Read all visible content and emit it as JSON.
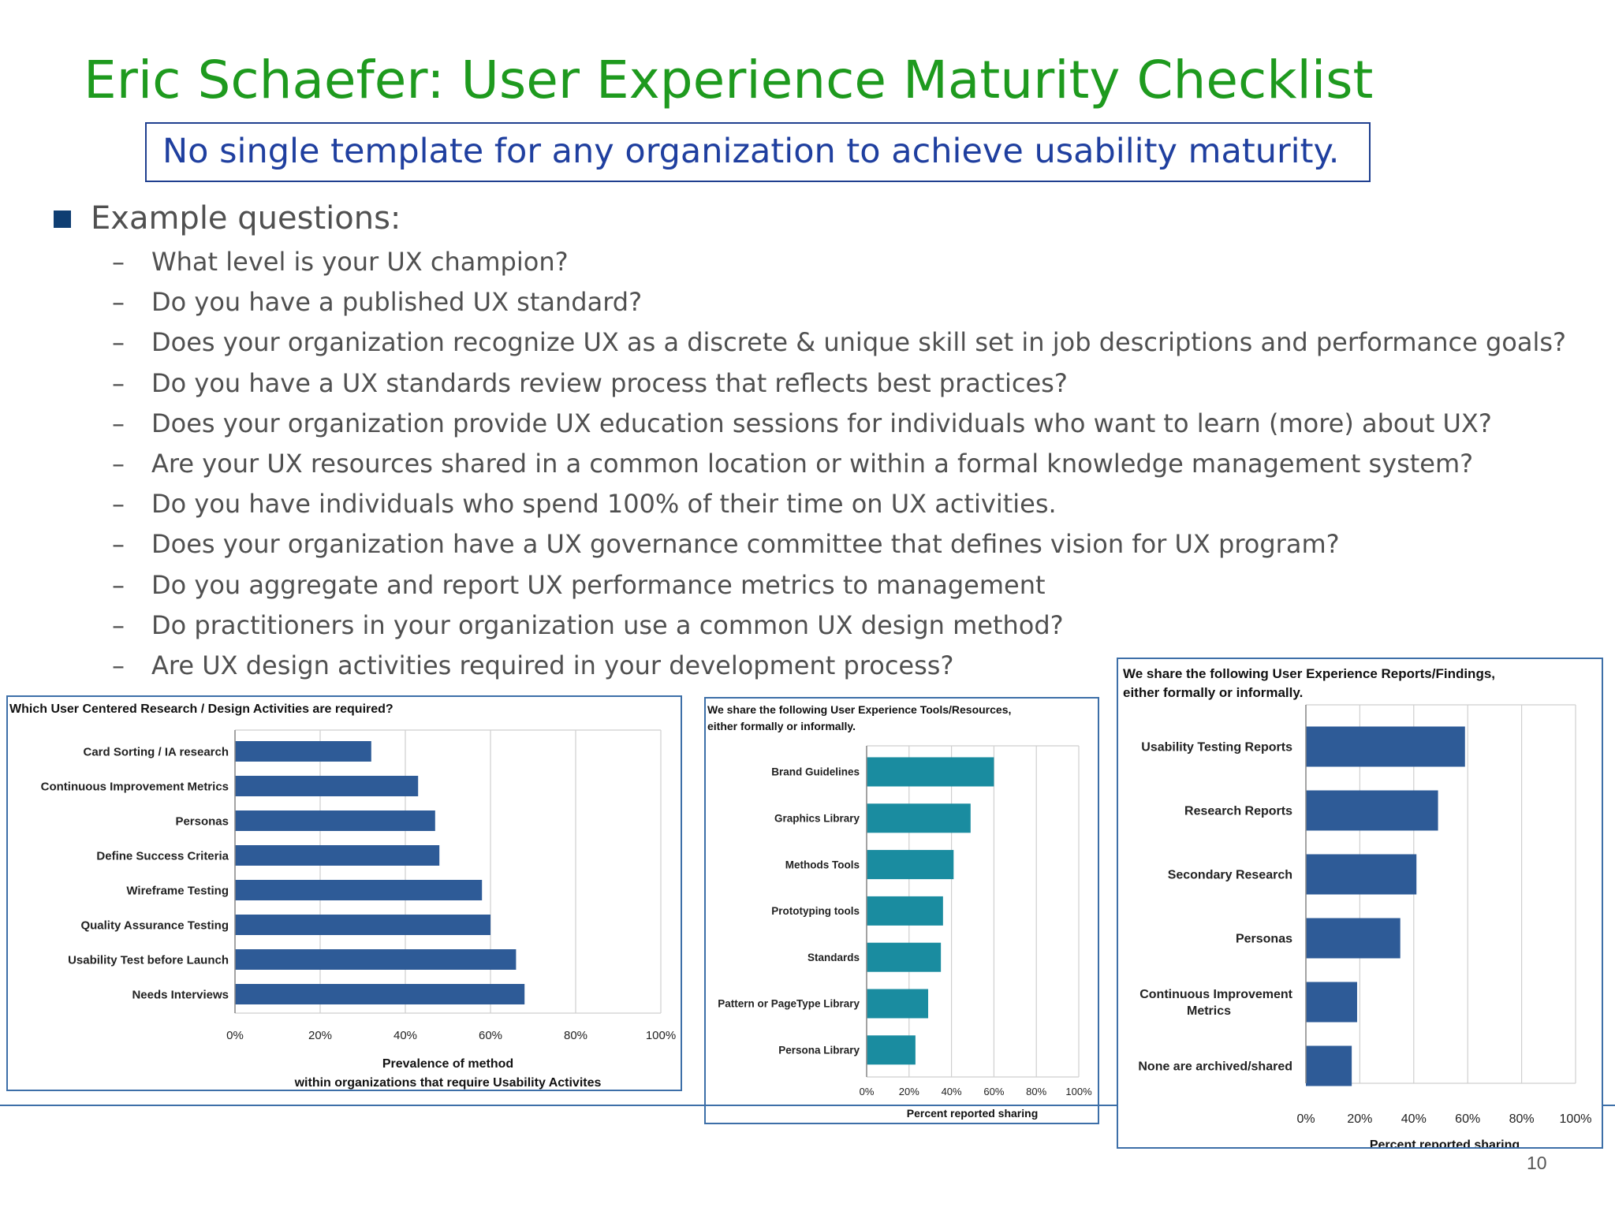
{
  "slide": {
    "title": "Eric Schaefer: User Experience Maturity Checklist",
    "callout": "No single template for any organization to achieve usability maturity.",
    "bullet": "Example questions:",
    "dash": "–",
    "questions": [
      "What level is your UX champion?",
      "Do you have a published UX standard?",
      "Does your organization recognize UX as a discrete & unique skill set in job descriptions and performance goals?",
      "Do you have a UX standards review process that reflects best practices?",
      "Does your organization provide UX education sessions for individuals who want to learn (more) about UX?",
      "Are your UX resources shared in a common location or within a formal knowledge management system?",
      "Do you have individuals who spend 100% of their time on UX activities.",
      "Does your organization have a UX governance committee that defines vision for UX program?",
      "Do you aggregate and report UX performance metrics to management",
      "Do practitioners in your organization use a common UX design method?",
      "Are UX design activities required in your development process?"
    ],
    "page_number": "10",
    "colors": {
      "title": "#1e9a1e",
      "callout_text": "#1f3f9f",
      "bar_blue": "#2e5b97",
      "bar_teal": "#1a8ca0"
    }
  },
  "chart_data": [
    {
      "type": "bar",
      "orientation": "horizontal",
      "title_lines": [
        "Which User Centered Research / Design Activities are required?"
      ],
      "categories": [
        "Card Sorting / IA research",
        "Continuous Improvement Metrics",
        "Personas",
        "Define Success Criteria",
        "Wireframe Testing",
        "Quality Assurance Testing",
        "Usability Test before Launch",
        "Needs Interviews"
      ],
      "values": [
        32,
        43,
        47,
        48,
        58,
        60,
        66,
        68
      ],
      "xlim": [
        0,
        100
      ],
      "xticks": [
        "0%",
        "20%",
        "40%",
        "60%",
        "80%",
        "100%"
      ],
      "xlabel_lines": [
        "Prevalence of method",
        "within organizations that require Usability Activites"
      ],
      "color": "#2e5b97",
      "grid": true
    },
    {
      "type": "bar",
      "orientation": "horizontal",
      "title_lines": [
        "We share the following User Experience Tools/Resources,",
        "either formally or informally."
      ],
      "categories": [
        "Brand Guidelines",
        "Graphics Library",
        "Methods Tools",
        "Prototyping tools",
        "Standards",
        "Pattern or PageType Library",
        "Persona Library"
      ],
      "values": [
        60,
        49,
        41,
        36,
        35,
        29,
        23
      ],
      "xlim": [
        0,
        100
      ],
      "xticks": [
        "0%",
        "20%",
        "40%",
        "60%",
        "80%",
        "100%"
      ],
      "xlabel_lines": [
        "Percent reported sharing"
      ],
      "color": "#1a8ca0",
      "grid": true
    },
    {
      "type": "bar",
      "orientation": "horizontal",
      "title_lines": [
        "We share the following User Experience Reports/Findings,",
        "either formally or informally."
      ],
      "categories": [
        [
          "Usability Testing Reports"
        ],
        [
          "Research Reports"
        ],
        [
          "Secondary Research"
        ],
        [
          "Personas"
        ],
        [
          "Continuous Improvement",
          "Metrics"
        ],
        [
          "None are archived/shared"
        ]
      ],
      "values": [
        59,
        49,
        41,
        35,
        19,
        17
      ],
      "xlim": [
        0,
        100
      ],
      "xticks": [
        "0%",
        "20%",
        "40%",
        "60%",
        "80%",
        "100%"
      ],
      "xlabel_lines": [
        "Percent reported sharing"
      ],
      "color": "#2e5b97",
      "grid": true
    }
  ]
}
